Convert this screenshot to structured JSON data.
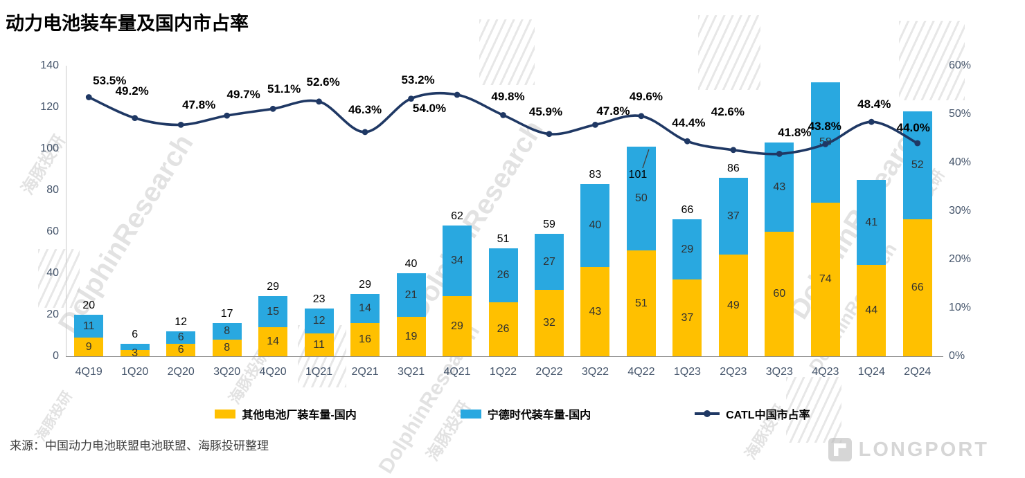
{
  "title": "动力电池装车量及国内市占率",
  "source": "来源：中国动力电池联盟电池联盟、海豚投研整理",
  "watermark": {
    "latin": "DolphinResearch",
    "cjk": "海豚投研"
  },
  "logo": {
    "text": "LONGPORT"
  },
  "legend": [
    {
      "label": "其他电池厂装车量-国内",
      "marker": "square",
      "color": "#FFC000"
    },
    {
      "label": "宁德时代装车量-国内",
      "marker": "square",
      "color": "#29A8E0"
    },
    {
      "label": "CATL中国市占率",
      "marker": "line",
      "color": "#1F3864"
    }
  ],
  "chart_data": {
    "type": "bar",
    "subtype": "stacked-column-with-line",
    "title": "动力电池装车量及国内市占率",
    "categories": [
      "4Q19",
      "1Q20",
      "2Q20",
      "3Q20",
      "4Q20",
      "1Q21",
      "2Q21",
      "3Q21",
      "4Q21",
      "1Q22",
      "2Q22",
      "3Q22",
      "4Q22",
      "1Q23",
      "2Q23",
      "3Q23",
      "4Q23",
      "1Q24",
      "2Q24"
    ],
    "series": [
      {
        "name": "其他电池厂装车量-国内",
        "type": "bar",
        "stack": "installed",
        "axis": "left",
        "color": "#FFC000",
        "values": [
          9,
          3,
          6,
          8,
          14,
          11,
          16,
          19,
          29,
          26,
          32,
          43,
          51,
          37,
          49,
          60,
          74,
          44,
          66
        ],
        "labels": [
          "9",
          "3",
          "6",
          "8",
          "14",
          "11",
          "16",
          "19",
          "29",
          "26",
          "32",
          "43",
          "51",
          "37",
          "49",
          "60",
          "74",
          "44",
          "66"
        ]
      },
      {
        "name": "宁德时代装车量-国内",
        "type": "bar",
        "stack": "installed",
        "axis": "left",
        "color": "#29A8E0",
        "values": [
          11,
          3,
          6,
          8,
          15,
          12,
          14,
          21,
          34,
          26,
          27,
          40,
          50,
          29,
          37,
          43,
          58,
          41,
          52
        ],
        "labels": [
          "11",
          null,
          "6",
          "8",
          "15",
          "12",
          "14",
          "21",
          "34",
          "26",
          "27",
          "40",
          "50",
          "29",
          "37",
          "43",
          "58",
          "41",
          "52"
        ]
      },
      {
        "name": "CATL中国市占率",
        "type": "line",
        "axis": "right",
        "color": "#1F3864",
        "values": [
          53.5,
          49.2,
          47.8,
          49.7,
          51.1,
          52.6,
          46.3,
          53.2,
          54.0,
          49.8,
          45.9,
          47.8,
          49.6,
          44.4,
          42.6,
          41.8,
          43.8,
          48.4,
          44.0
        ],
        "labels": [
          "53.5%",
          "49.2%",
          "47.8%",
          "49.7%",
          "51.1%",
          "52.6%",
          "46.3%",
          "53.2%",
          "54.0%",
          "49.8%",
          "45.9%",
          "47.8%",
          "49.6%",
          "44.4%",
          "42.6%",
          "41.8%",
          "43.8%",
          "48.4%",
          "44.0%"
        ]
      }
    ],
    "totals": [
      "20",
      "6",
      "12",
      "17",
      "29",
      "23",
      "29",
      "40",
      "62",
      "51",
      "59",
      "83",
      "101",
      "66",
      "86",
      null,
      null,
      null,
      null
    ],
    "left_axis": {
      "min": 0,
      "max": 140,
      "ticks": [
        0,
        20,
        40,
        60,
        80,
        100,
        120,
        140
      ]
    },
    "right_axis": {
      "min": 0,
      "max": 60,
      "ticks": [
        "0%",
        "10%",
        "20%",
        "30%",
        "40%",
        "50%",
        "60%"
      ]
    },
    "grid": false,
    "legend_position": "bottom"
  }
}
